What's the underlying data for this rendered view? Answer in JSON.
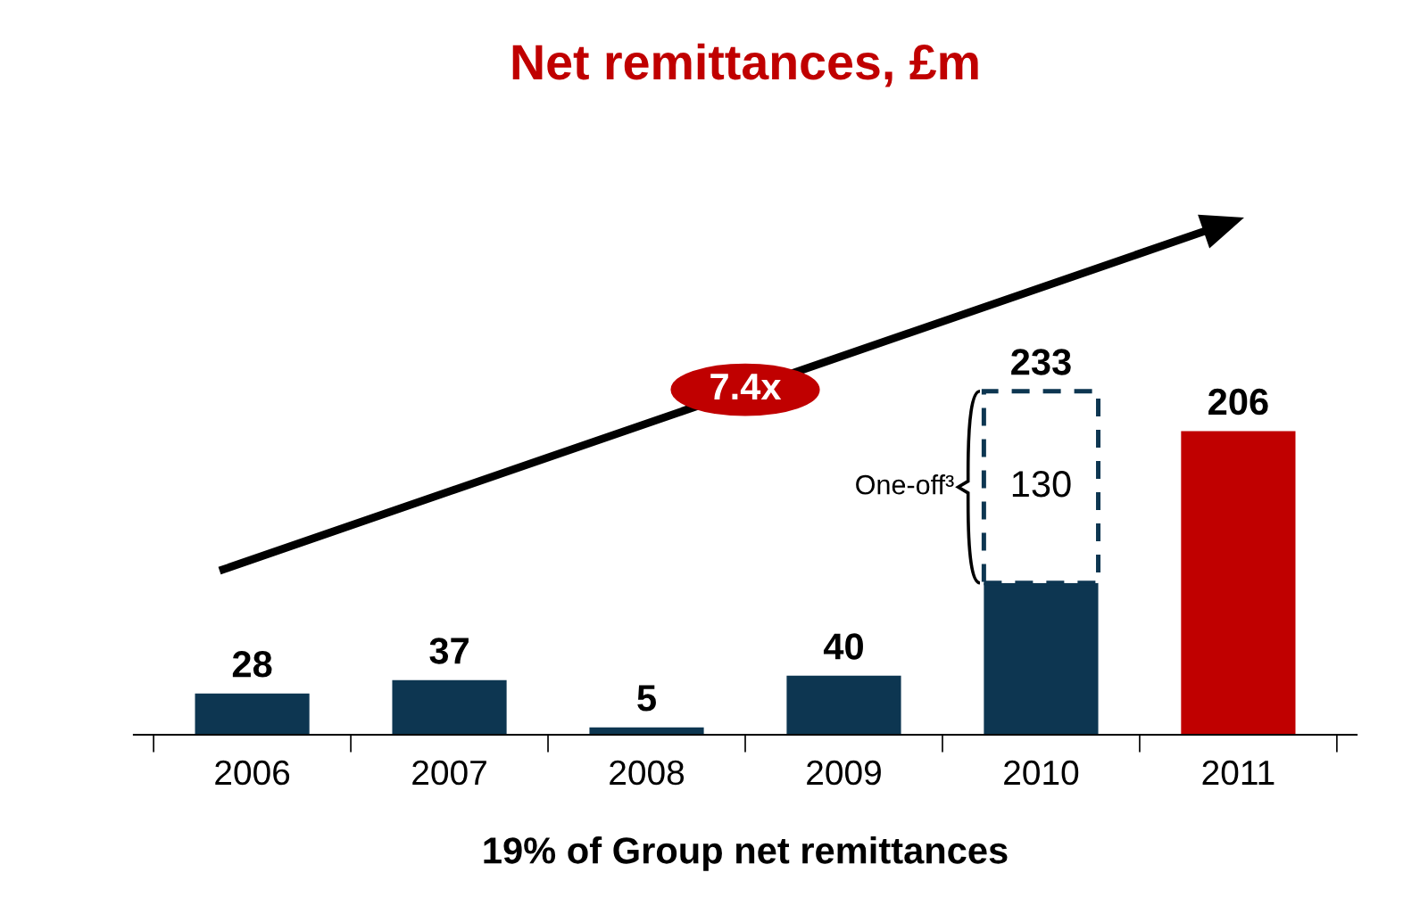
{
  "chart_data": {
    "type": "bar",
    "stacked": true,
    "title": "Net remittances, £m",
    "xlabel": "19% of Group net remittances",
    "categories": [
      "2006",
      "2007",
      "2008",
      "2009",
      "2010",
      "2011"
    ],
    "series": [
      {
        "colors": [
          "#0d3651",
          "#0d3651",
          "#0d3651",
          "#0d3651",
          "#0d3651",
          "#c00000"
        ],
        "values": [
          28,
          37,
          5,
          40,
          103,
          206
        ],
        "value_labels": [
          "28",
          "37",
          "5",
          "40",
          null,
          "206"
        ]
      },
      {
        "color": "#0d3651",
        "line_style": "dashed",
        "values": [
          null,
          null,
          null,
          null,
          130,
          null
        ],
        "value_labels": [
          null,
          null,
          null,
          null,
          "130",
          null
        ]
      }
    ],
    "totals": [
      null,
      null,
      null,
      null,
      "233",
      null
    ],
    "annotations": [
      "7.4x",
      "One-off³"
    ],
    "legend": false,
    "grid": false
  }
}
